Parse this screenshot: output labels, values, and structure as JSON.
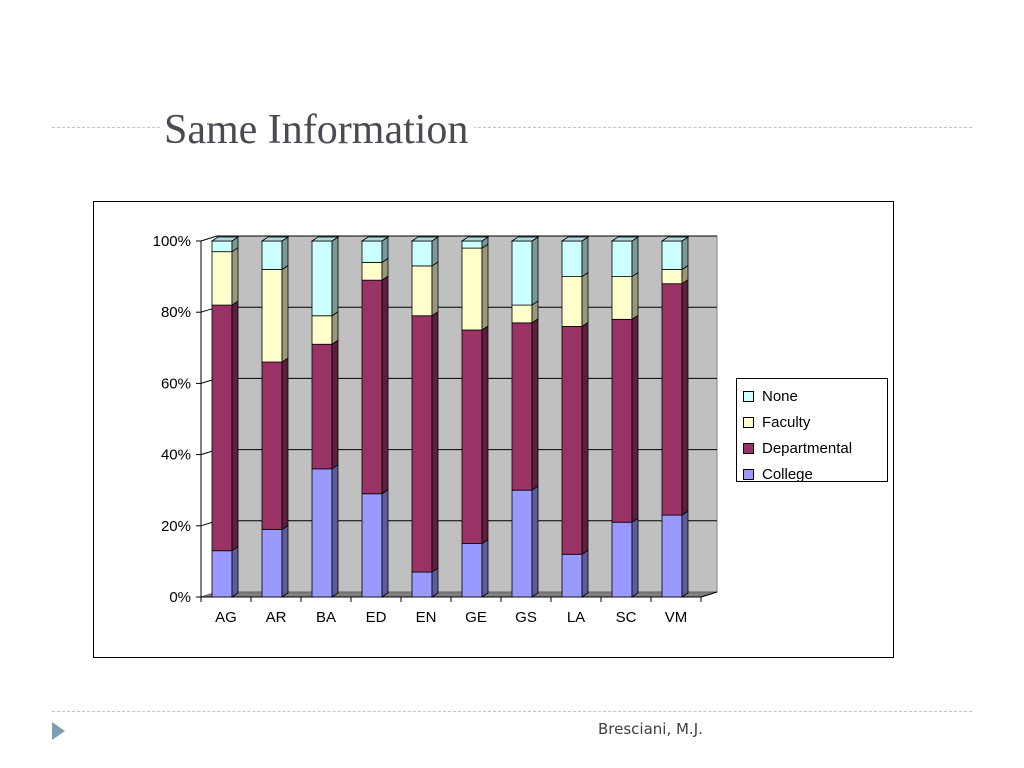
{
  "slide": {
    "title": "Same Information",
    "footer": "Bresciani, M.J."
  },
  "colors": {
    "College": "#9999ff",
    "Departmental": "#993366",
    "Faculty": "#ffffcc",
    "None": "#ccffff",
    "wall": "#c0c0c0",
    "floor": "#808080",
    "accent_rule": "#b9c7d2",
    "bullet": "#7f9db4"
  },
  "chart_data": {
    "type": "bar",
    "stacked": "percent",
    "three_d": true,
    "categories": [
      "AG",
      "AR",
      "BA",
      "ED",
      "EN",
      "GE",
      "GS",
      "LA",
      "SC",
      "VM"
    ],
    "series": [
      {
        "name": "College",
        "values": [
          13,
          19,
          36,
          29,
          7,
          15,
          30,
          12,
          21,
          23
        ]
      },
      {
        "name": "Departmental",
        "values": [
          69,
          47,
          35,
          60,
          72,
          60,
          47,
          64,
          57,
          65
        ]
      },
      {
        "name": "Faculty",
        "values": [
          15,
          26,
          8,
          5,
          14,
          23,
          5,
          14,
          12,
          4
        ]
      },
      {
        "name": "None",
        "values": [
          3,
          8,
          21,
          6,
          7,
          2,
          18,
          10,
          10,
          8
        ]
      }
    ],
    "ylim": [
      0,
      100
    ],
    "yticks": [
      "0%",
      "20%",
      "40%",
      "60%",
      "80%",
      "100%"
    ],
    "grid": true,
    "legend": {
      "position": "right",
      "order": [
        "None",
        "Faculty",
        "Departmental",
        "College"
      ]
    }
  }
}
